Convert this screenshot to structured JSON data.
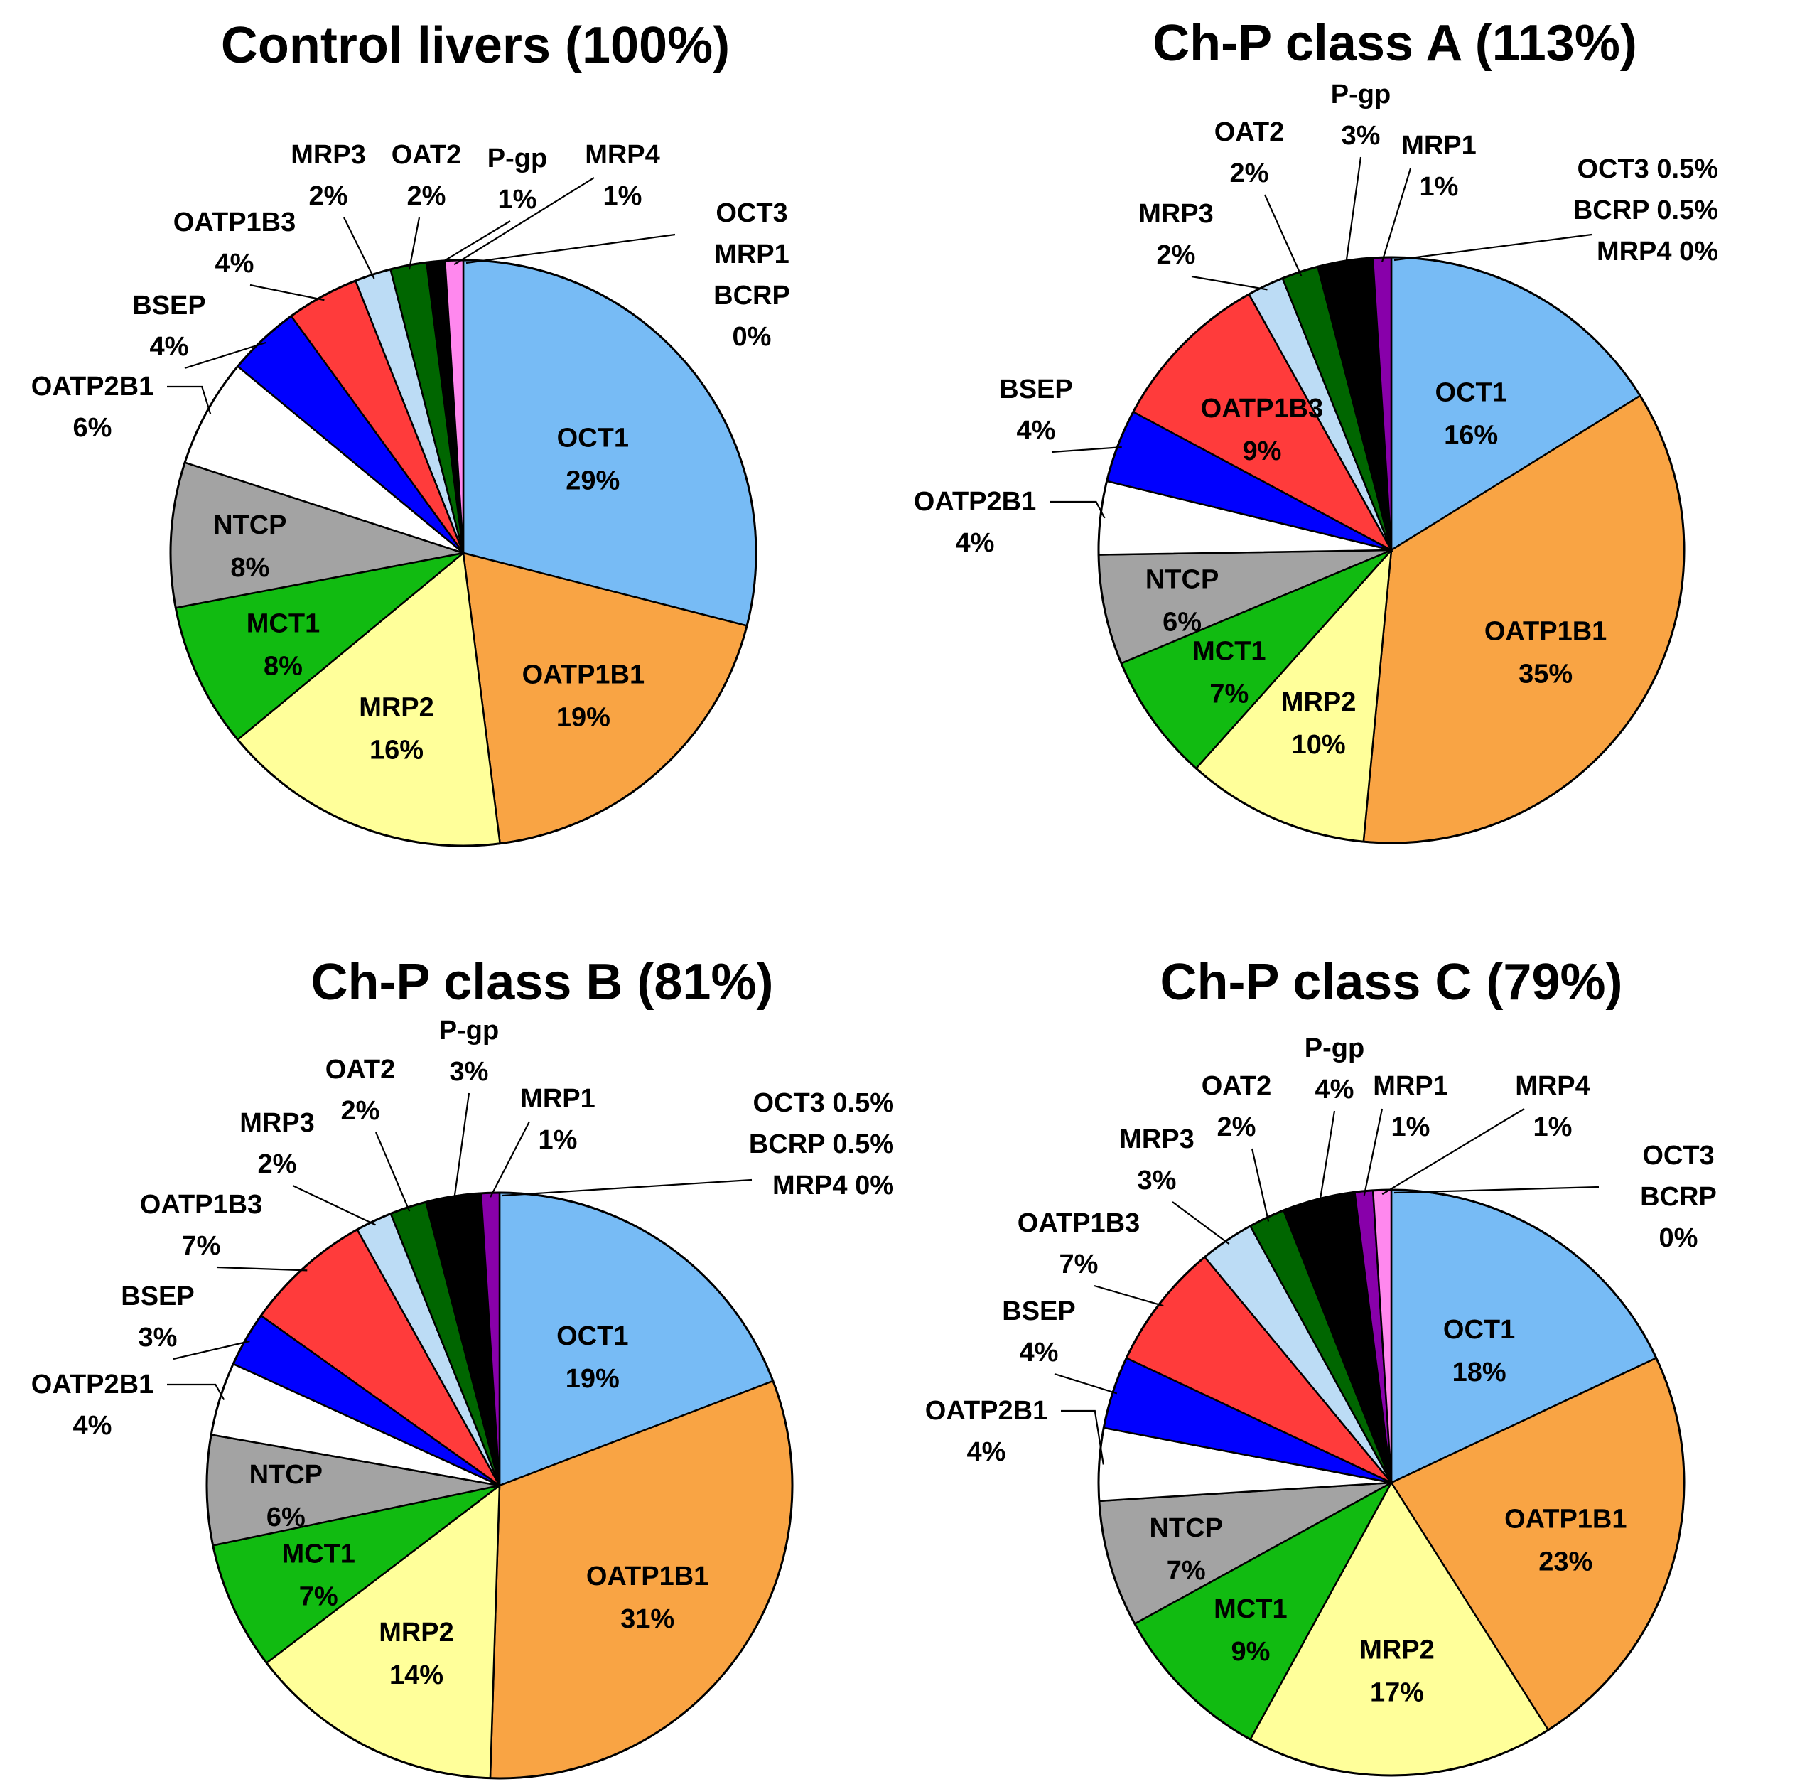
{
  "chart_data": [
    {
      "type": "pie",
      "title": "Control livers (100%)",
      "slices": [
        {
          "name": "OCT1",
          "value": 29,
          "label": "29%",
          "color": "#77bbf5",
          "inside": true
        },
        {
          "name": "OATP1B1",
          "value": 19,
          "label": "19%",
          "color": "#f9a444",
          "inside": true
        },
        {
          "name": "MRP2",
          "value": 16,
          "label": "16%",
          "color": "#ffff9a",
          "inside": true
        },
        {
          "name": "MCT1",
          "value": 8,
          "label": "8%",
          "color": "#11bb11",
          "inside": true
        },
        {
          "name": "NTCP",
          "value": 8,
          "label": "8%",
          "color": "#a3a3a3",
          "inside": true
        },
        {
          "name": "OATP2B1",
          "value": 6,
          "label": "6%",
          "color": "#ffffff",
          "inside": false
        },
        {
          "name": "BSEP",
          "value": 4,
          "label": "4%",
          "color": "#0000ff",
          "inside": false
        },
        {
          "name": "OATP1B3",
          "value": 4,
          "label": "4%",
          "color": "#ff3b3b",
          "inside": false
        },
        {
          "name": "MRP3",
          "value": 2,
          "label": "2%",
          "color": "#bcdcf5",
          "inside": false
        },
        {
          "name": "OAT2",
          "value": 2,
          "label": "2%",
          "color": "#006600",
          "inside": false
        },
        {
          "name": "P-gp",
          "value": 1,
          "label": "1%",
          "color": "#000000",
          "inside": false
        },
        {
          "name": "MRP4",
          "value": 1,
          "label": "1%",
          "color": "#ff88ee",
          "inside": false
        }
      ],
      "zero_group": {
        "lines": [
          "OCT3",
          "MRP1",
          "BCRP",
          "0%"
        ]
      }
    },
    {
      "type": "pie",
      "title": "Ch-P class A (113%)",
      "slices": [
        {
          "name": "OCT1",
          "value": 16,
          "label": "16%",
          "color": "#77bbf5",
          "inside": true
        },
        {
          "name": "OATP1B1",
          "value": 35,
          "label": "35%",
          "color": "#f9a444",
          "inside": true
        },
        {
          "name": "MRP2",
          "value": 10,
          "label": "10%",
          "color": "#ffff9a",
          "inside": true
        },
        {
          "name": "MCT1",
          "value": 7,
          "label": "7%",
          "color": "#11bb11",
          "inside": true
        },
        {
          "name": "NTCP",
          "value": 6,
          "label": "6%",
          "color": "#a3a3a3",
          "inside": true
        },
        {
          "name": "OATP2B1",
          "value": 4,
          "label": "4%",
          "color": "#ffffff",
          "inside": false
        },
        {
          "name": "BSEP",
          "value": 4,
          "label": "4%",
          "color": "#0000ff",
          "inside": false
        },
        {
          "name": "OATP1B3",
          "value": 9,
          "label": "9%",
          "color": "#ff3b3b",
          "inside": true
        },
        {
          "name": "MRP3",
          "value": 2,
          "label": "2%",
          "color": "#bcdcf5",
          "inside": false
        },
        {
          "name": "OAT2",
          "value": 2,
          "label": "2%",
          "color": "#006600",
          "inside": false
        },
        {
          "name": "P-gp",
          "value": 3,
          "label": "3%",
          "color": "#000000",
          "inside": false
        },
        {
          "name": "MRP1",
          "value": 1,
          "label": "1%",
          "color": "#8800aa",
          "inside": false
        }
      ],
      "zero_group": {
        "lines": [
          "OCT3 0.5%",
          "BCRP 0.5%",
          "MRP4 0%"
        ]
      }
    },
    {
      "type": "pie",
      "title": "Ch-P class B (81%)",
      "slices": [
        {
          "name": "OCT1",
          "value": 19,
          "label": "19%",
          "color": "#77bbf5",
          "inside": true
        },
        {
          "name": "OATP1B1",
          "value": 31,
          "label": "31%",
          "color": "#f9a444",
          "inside": true
        },
        {
          "name": "MRP2",
          "value": 14,
          "label": "14%",
          "color": "#ffff9a",
          "inside": true
        },
        {
          "name": "MCT1",
          "value": 7,
          "label": "7%",
          "color": "#11bb11",
          "inside": true
        },
        {
          "name": "NTCP",
          "value": 6,
          "label": "6%",
          "color": "#a3a3a3",
          "inside": true
        },
        {
          "name": "OATP2B1",
          "value": 4,
          "label": "4%",
          "color": "#ffffff",
          "inside": false
        },
        {
          "name": "BSEP",
          "value": 3,
          "label": "3%",
          "color": "#0000ff",
          "inside": false
        },
        {
          "name": "OATP1B3",
          "value": 7,
          "label": "7%",
          "color": "#ff3b3b",
          "inside": false
        },
        {
          "name": "MRP3",
          "value": 2,
          "label": "2%",
          "color": "#bcdcf5",
          "inside": false
        },
        {
          "name": "OAT2",
          "value": 2,
          "label": "2%",
          "color": "#006600",
          "inside": false
        },
        {
          "name": "P-gp",
          "value": 3,
          "label": "3%",
          "color": "#000000",
          "inside": false
        },
        {
          "name": "MRP1",
          "value": 1,
          "label": "1%",
          "color": "#8800aa",
          "inside": false
        }
      ],
      "zero_group": {
        "lines": [
          "OCT3 0.5%",
          "BCRP 0.5%",
          "MRP4 0%"
        ]
      }
    },
    {
      "type": "pie",
      "title": "Ch-P class C (79%)",
      "slices": [
        {
          "name": "OCT1",
          "value": 18,
          "label": "18%",
          "color": "#77bbf5",
          "inside": true
        },
        {
          "name": "OATP1B1",
          "value": 23,
          "label": "23%",
          "color": "#f9a444",
          "inside": true
        },
        {
          "name": "MRP2",
          "value": 17,
          "label": "17%",
          "color": "#ffff9a",
          "inside": true
        },
        {
          "name": "MCT1",
          "value": 9,
          "label": "9%",
          "color": "#11bb11",
          "inside": true
        },
        {
          "name": "NTCP",
          "value": 7,
          "label": "7%",
          "color": "#a3a3a3",
          "inside": true
        },
        {
          "name": "OATP2B1",
          "value": 4,
          "label": "4%",
          "color": "#ffffff",
          "inside": false
        },
        {
          "name": "BSEP",
          "value": 4,
          "label": "4%",
          "color": "#0000ff",
          "inside": false
        },
        {
          "name": "OATP1B3",
          "value": 7,
          "label": "7%",
          "color": "#ff3b3b",
          "inside": false
        },
        {
          "name": "MRP3",
          "value": 3,
          "label": "3%",
          "color": "#bcdcf5",
          "inside": false
        },
        {
          "name": "OAT2",
          "value": 2,
          "label": "2%",
          "color": "#006600",
          "inside": false
        },
        {
          "name": "P-gp",
          "value": 4,
          "label": "4%",
          "color": "#000000",
          "inside": false
        },
        {
          "name": "MRP1",
          "value": 1,
          "label": "1%",
          "color": "#8800aa",
          "inside": false
        },
        {
          "name": "MRP4",
          "value": 1,
          "label": "1%",
          "color": "#ff88ee",
          "inside": false
        }
      ],
      "zero_group": {
        "lines": [
          "OCT3",
          "BCRP",
          "0%"
        ]
      }
    }
  ]
}
